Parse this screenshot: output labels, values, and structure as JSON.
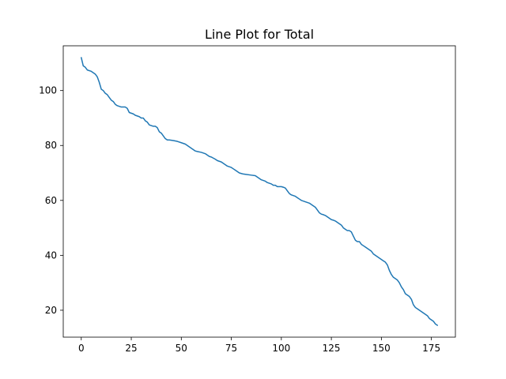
{
  "chart_data": {
    "type": "line",
    "title": "Line Plot for Total",
    "xlabel": "",
    "ylabel": "",
    "xlim": [
      -9,
      187
    ],
    "ylim": [
      10.2,
      116.3
    ],
    "xticks": [
      0,
      25,
      50,
      75,
      100,
      125,
      150,
      175
    ],
    "yticks": [
      20,
      40,
      60,
      80,
      100
    ],
    "grid": false,
    "line_color": "#1f77b4",
    "series": [
      {
        "x": [
          0,
          1,
          2,
          3,
          5,
          7,
          8,
          9,
          10,
          11,
          12,
          13,
          14,
          15,
          16,
          17,
          18,
          20,
          22,
          23,
          24,
          26,
          27,
          29,
          30,
          31,
          32,
          33,
          34,
          36,
          37,
          38,
          39,
          40,
          41,
          42,
          43,
          44,
          46,
          48,
          50,
          52,
          53,
          54,
          55,
          56,
          57,
          58,
          60,
          62,
          63,
          64,
          65,
          67,
          68,
          70,
          71,
          72,
          73,
          75,
          76,
          77,
          78,
          79,
          80,
          81,
          82,
          85,
          87,
          88,
          89,
          90,
          92,
          93,
          95,
          96,
          97,
          98,
          100,
          101,
          102,
          103,
          104,
          105,
          107,
          108,
          109,
          110,
          112,
          114,
          116,
          117,
          118,
          119,
          120,
          121,
          122,
          123,
          124,
          125,
          126,
          127,
          128,
          129,
          130,
          131,
          132,
          133,
          134,
          135,
          136,
          137,
          138,
          139,
          140,
          141,
          142,
          143,
          144,
          145,
          146,
          147,
          148,
          149,
          150,
          151,
          152,
          153,
          154,
          155,
          156,
          157,
          158,
          159,
          160,
          161,
          162,
          163,
          164,
          165,
          166,
          167,
          168,
          169,
          170,
          171,
          172,
          173,
          174,
          175,
          176,
          177,
          178
        ],
        "y": [
          112,
          109,
          108.5,
          107.5,
          107,
          106,
          105,
          103,
          100.5,
          100,
          99,
          98.5,
          97.5,
          96.5,
          96,
          95,
          94.5,
          94,
          94,
          93.5,
          92,
          91.5,
          91,
          90.5,
          90,
          90,
          89,
          88.5,
          87.5,
          87,
          87,
          86.5,
          85,
          84.5,
          83.5,
          82.5,
          82,
          82,
          81.8,
          81.5,
          81,
          80.5,
          80,
          79.5,
          79,
          78.5,
          78,
          77.8,
          77.5,
          77,
          76.5,
          76,
          75.8,
          75,
          74.5,
          74,
          73.5,
          73,
          72.5,
          72,
          71.5,
          71,
          70.5,
          70,
          69.8,
          69.6,
          69.5,
          69.2,
          69,
          68.5,
          68,
          67.5,
          67,
          66.5,
          66,
          65.5,
          65.5,
          65,
          65,
          64.8,
          64.5,
          63.5,
          62.5,
          62,
          61.5,
          61,
          60.5,
          60,
          59.5,
          59,
          58,
          57.5,
          56.5,
          55.5,
          55,
          54.8,
          54.5,
          54,
          53.5,
          53,
          52.8,
          52.5,
          52,
          51.5,
          51,
          50,
          49.5,
          49,
          49,
          48.5,
          47,
          45.5,
          45,
          45,
          44,
          43.5,
          43,
          42.5,
          42,
          41.5,
          40.5,
          40,
          39.5,
          39,
          38.5,
          38,
          37.5,
          36.5,
          34.5,
          33,
          32,
          31.5,
          31,
          30,
          28.5,
          27.5,
          26,
          25.5,
          25,
          24,
          22,
          21,
          20.5,
          20,
          19.5,
          19,
          18.5,
          18,
          17,
          16.5,
          16,
          15,
          14.5
        ]
      }
    ]
  }
}
